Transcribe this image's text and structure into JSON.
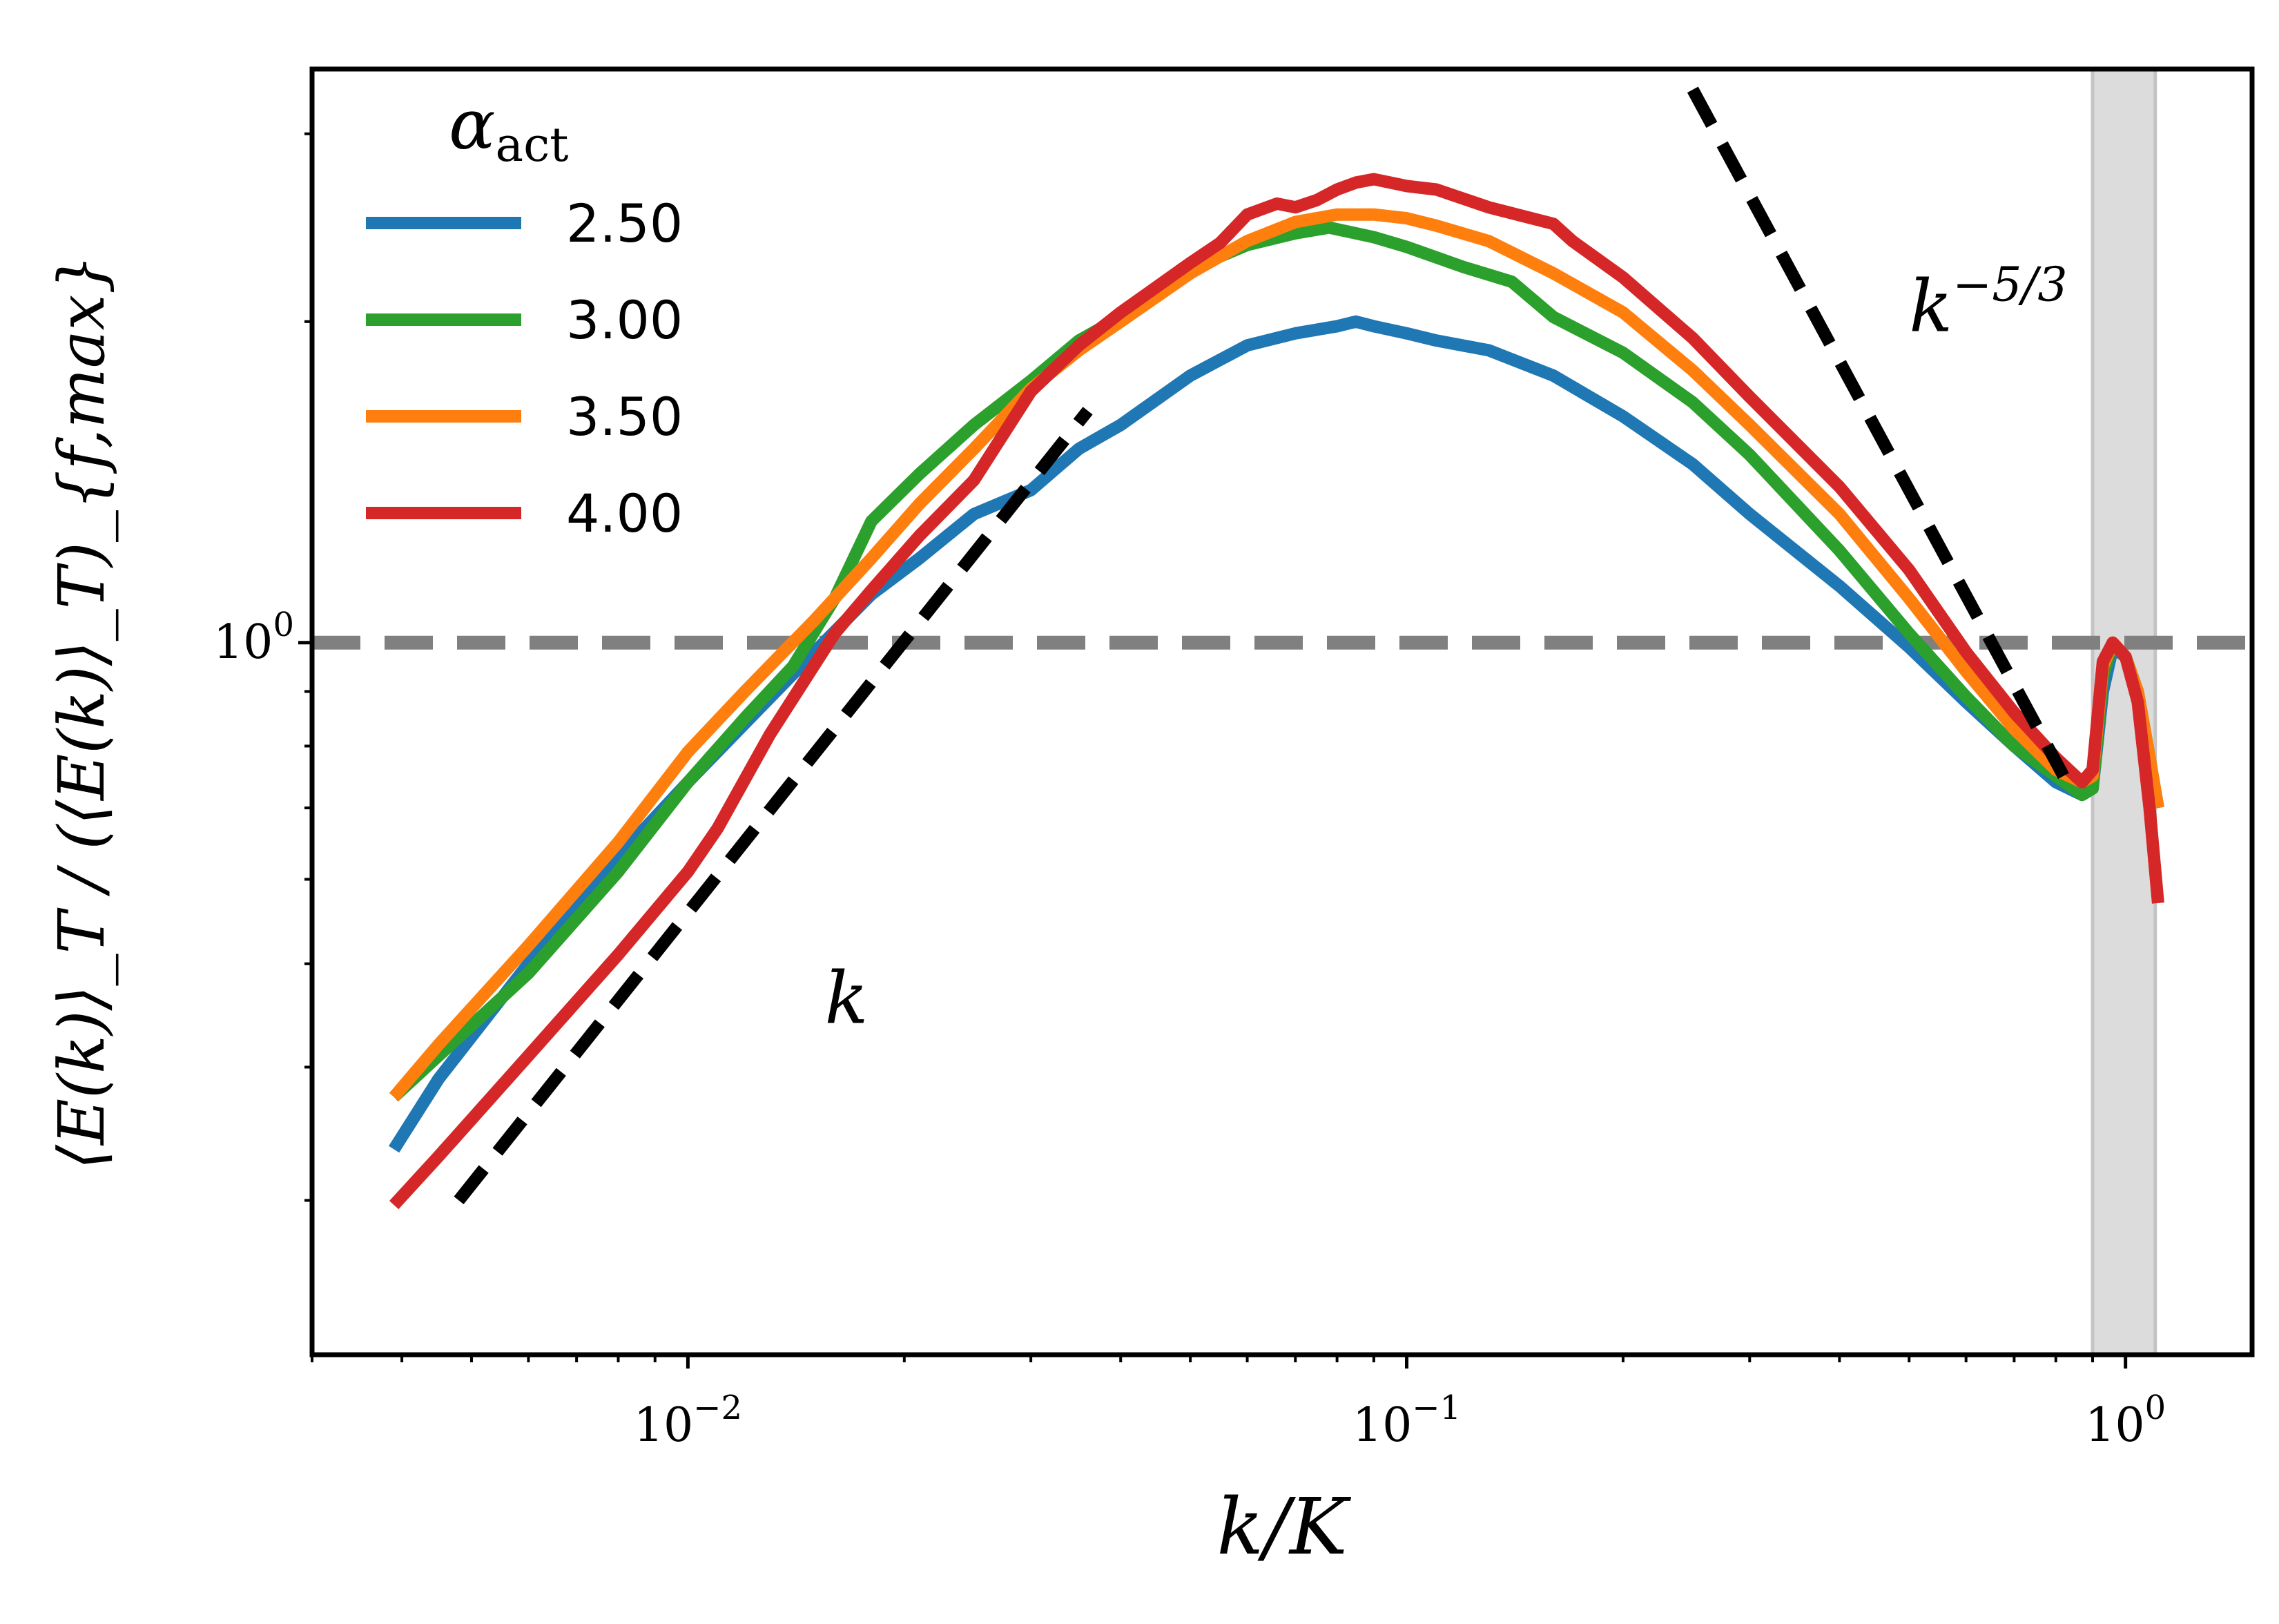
{
  "chart_data": {
    "type": "line",
    "title": "",
    "xlabel": "k/K",
    "ylabel": "⟨E(k)⟩_T / (⟨E(k)⟩_T)_{f,max}",
    "xscale": "log",
    "yscale": "log",
    "xlim": [
      0.003,
      1.5
    ],
    "ylim": [
      0.215,
      3.45
    ],
    "x_ticks": [
      {
        "value": 0.01,
        "base": "10",
        "exp": "−2"
      },
      {
        "value": 0.1,
        "base": "10",
        "exp": "−1"
      },
      {
        "value": 1,
        "base": "10",
        "exp": "0"
      }
    ],
    "y_ticks": [
      {
        "value": 1,
        "base": "10",
        "exp": "0"
      }
    ],
    "legend": {
      "title": "α",
      "title_sub": "act",
      "position": "top-left",
      "entries": [
        {
          "label": "2.50",
          "color": "#1f77b4"
        },
        {
          "label": "3.00",
          "color": "#2ca02c"
        },
        {
          "label": "3.50",
          "color": "#ff7f0e"
        },
        {
          "label": "4.00",
          "color": "#d62728"
        }
      ]
    },
    "series": [
      {
        "name": "2.50",
        "color": "#1f77b4",
        "points": [
          [
            0.0039,
            0.335
          ],
          [
            0.0045,
            0.39
          ],
          [
            0.006,
            0.5
          ],
          [
            0.008,
            0.63
          ],
          [
            0.01,
            0.74
          ],
          [
            0.012,
            0.84
          ],
          [
            0.015,
            0.98
          ],
          [
            0.018,
            1.11
          ],
          [
            0.021,
            1.2
          ],
          [
            0.025,
            1.32
          ],
          [
            0.03,
            1.39
          ],
          [
            0.035,
            1.52
          ],
          [
            0.04,
            1.6
          ],
          [
            0.05,
            1.78
          ],
          [
            0.06,
            1.9
          ],
          [
            0.07,
            1.95
          ],
          [
            0.08,
            1.98
          ],
          [
            0.085,
            2.0
          ],
          [
            0.09,
            1.98
          ],
          [
            0.1,
            1.95
          ],
          [
            0.11,
            1.92
          ],
          [
            0.13,
            1.88
          ],
          [
            0.16,
            1.78
          ],
          [
            0.2,
            1.63
          ],
          [
            0.25,
            1.47
          ],
          [
            0.3,
            1.32
          ],
          [
            0.4,
            1.13
          ],
          [
            0.5,
            0.99
          ],
          [
            0.6,
            0.88
          ],
          [
            0.7,
            0.8
          ],
          [
            0.8,
            0.74
          ],
          [
            0.87,
            0.72
          ],
          [
            0.9,
            0.73
          ],
          [
            0.93,
            0.9
          ],
          [
            0.96,
            0.99
          ],
          [
            1.0,
            0.97
          ],
          [
            1.04,
            0.9
          ],
          [
            1.08,
            0.78
          ],
          [
            1.11,
            0.7
          ]
        ]
      },
      {
        "name": "3.00",
        "color": "#2ca02c",
        "points": [
          [
            0.0039,
            0.375
          ],
          [
            0.0045,
            0.41
          ],
          [
            0.006,
            0.49
          ],
          [
            0.008,
            0.61
          ],
          [
            0.01,
            0.74
          ],
          [
            0.012,
            0.85
          ],
          [
            0.014,
            0.95
          ],
          [
            0.016,
            1.1
          ],
          [
            0.018,
            1.3
          ],
          [
            0.021,
            1.44
          ],
          [
            0.025,
            1.6
          ],
          [
            0.03,
            1.76
          ],
          [
            0.035,
            1.92
          ],
          [
            0.04,
            2.02
          ],
          [
            0.05,
            2.24
          ],
          [
            0.06,
            2.36
          ],
          [
            0.07,
            2.42
          ],
          [
            0.078,
            2.45
          ],
          [
            0.09,
            2.4
          ],
          [
            0.1,
            2.35
          ],
          [
            0.12,
            2.25
          ],
          [
            0.14,
            2.18
          ],
          [
            0.16,
            2.02
          ],
          [
            0.2,
            1.87
          ],
          [
            0.25,
            1.68
          ],
          [
            0.3,
            1.5
          ],
          [
            0.4,
            1.22
          ],
          [
            0.5,
            1.02
          ],
          [
            0.6,
            0.89
          ],
          [
            0.7,
            0.8
          ],
          [
            0.8,
            0.75
          ],
          [
            0.87,
            0.72
          ],
          [
            0.9,
            0.73
          ],
          [
            0.93,
            0.93
          ],
          [
            0.96,
            1.0
          ],
          [
            1.0,
            0.97
          ],
          [
            1.04,
            0.9
          ],
          [
            1.08,
            0.78
          ],
          [
            1.11,
            0.7
          ]
        ]
      },
      {
        "name": "3.50",
        "color": "#ff7f0e",
        "points": [
          [
            0.0039,
            0.375
          ],
          [
            0.0045,
            0.42
          ],
          [
            0.006,
            0.52
          ],
          [
            0.008,
            0.65
          ],
          [
            0.01,
            0.79
          ],
          [
            0.012,
            0.9
          ],
          [
            0.015,
            1.05
          ],
          [
            0.018,
            1.2
          ],
          [
            0.021,
            1.35
          ],
          [
            0.025,
            1.52
          ],
          [
            0.03,
            1.73
          ],
          [
            0.035,
            1.88
          ],
          [
            0.04,
            2.0
          ],
          [
            0.05,
            2.22
          ],
          [
            0.06,
            2.38
          ],
          [
            0.07,
            2.48
          ],
          [
            0.08,
            2.52
          ],
          [
            0.09,
            2.52
          ],
          [
            0.1,
            2.5
          ],
          [
            0.11,
            2.46
          ],
          [
            0.13,
            2.38
          ],
          [
            0.16,
            2.22
          ],
          [
            0.2,
            2.04
          ],
          [
            0.25,
            1.8
          ],
          [
            0.3,
            1.6
          ],
          [
            0.4,
            1.32
          ],
          [
            0.5,
            1.1
          ],
          [
            0.6,
            0.94
          ],
          [
            0.7,
            0.83
          ],
          [
            0.8,
            0.76
          ],
          [
            0.87,
            0.74
          ],
          [
            0.9,
            0.75
          ],
          [
            0.93,
            0.95
          ],
          [
            0.96,
            1.0
          ],
          [
            1.0,
            0.97
          ],
          [
            1.04,
            0.9
          ],
          [
            1.08,
            0.78
          ],
          [
            1.11,
            0.7
          ]
        ]
      },
      {
        "name": "4.00",
        "color": "#d62728",
        "points": [
          [
            0.0039,
            0.297
          ],
          [
            0.0045,
            0.33
          ],
          [
            0.006,
            0.41
          ],
          [
            0.008,
            0.51
          ],
          [
            0.01,
            0.61
          ],
          [
            0.011,
            0.67
          ],
          [
            0.013,
            0.82
          ],
          [
            0.016,
            1.02
          ],
          [
            0.018,
            1.12
          ],
          [
            0.021,
            1.26
          ],
          [
            0.025,
            1.42
          ],
          [
            0.03,
            1.72
          ],
          [
            0.035,
            1.9
          ],
          [
            0.04,
            2.04
          ],
          [
            0.05,
            2.27
          ],
          [
            0.055,
            2.37
          ],
          [
            0.06,
            2.52
          ],
          [
            0.066,
            2.58
          ],
          [
            0.07,
            2.56
          ],
          [
            0.075,
            2.6
          ],
          [
            0.08,
            2.66
          ],
          [
            0.085,
            2.7
          ],
          [
            0.09,
            2.72
          ],
          [
            0.1,
            2.68
          ],
          [
            0.11,
            2.66
          ],
          [
            0.13,
            2.56
          ],
          [
            0.16,
            2.47
          ],
          [
            0.17,
            2.38
          ],
          [
            0.2,
            2.2
          ],
          [
            0.25,
            1.93
          ],
          [
            0.3,
            1.7
          ],
          [
            0.4,
            1.4
          ],
          [
            0.5,
            1.17
          ],
          [
            0.6,
            0.98
          ],
          [
            0.7,
            0.86
          ],
          [
            0.8,
            0.78
          ],
          [
            0.87,
            0.74
          ],
          [
            0.9,
            0.76
          ],
          [
            0.93,
            0.96
          ],
          [
            0.96,
            1.0
          ],
          [
            1.0,
            0.97
          ],
          [
            1.04,
            0.88
          ],
          [
            1.08,
            0.7
          ],
          [
            1.11,
            0.57
          ]
        ]
      }
    ],
    "reference_lines": [
      {
        "name": "slope-k",
        "label": "k",
        "label_exp": "",
        "points": [
          [
            0.0048,
            0.3
          ],
          [
            0.036,
            1.65
          ]
        ],
        "color": "#000000",
        "style": "dashed",
        "label_at": [
          0.0155,
          0.44
        ]
      },
      {
        "name": "slope-k-5/3",
        "label": "k",
        "label_exp": "−5/3",
        "points": [
          [
            0.25,
            3.3
          ],
          [
            0.82,
            0.75
          ]
        ],
        "color": "#000000",
        "style": "dashed",
        "label_at": [
          0.5,
          1.96
        ]
      }
    ],
    "hlines": [
      {
        "y": 1.0,
        "color": "#808080",
        "style": "dashed"
      }
    ],
    "shaded_regions": [
      {
        "x_from": 0.9,
        "x_to": 1.1,
        "color": "#dcdcdc"
      }
    ]
  }
}
